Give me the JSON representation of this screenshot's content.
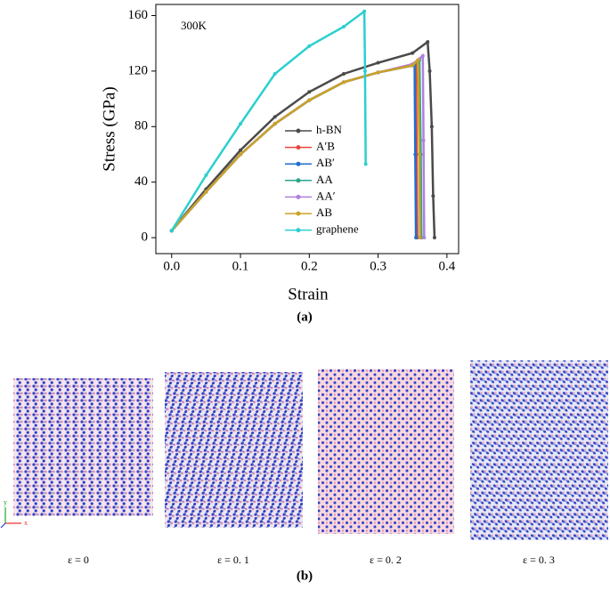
{
  "chart_data": {
    "type": "line",
    "annotation": "300K",
    "xlabel": "Strain",
    "ylabel": "Stress (GPa)",
    "xlim": [
      -0.023,
      0.417
    ],
    "ylim": [
      -11.5,
      168
    ],
    "xticks": [
      {
        "value": 0,
        "label": "0.0"
      },
      0.1,
      0.2,
      0.3,
      0.4
    ],
    "yticks": [
      0,
      40,
      80,
      120,
      160
    ],
    "legend": "center-right",
    "series": [
      {
        "name": "h-BN",
        "color": "#4a4a4a",
        "x": [
          0,
          0.05,
          0.1,
          0.15,
          0.2,
          0.25,
          0.3,
          0.35,
          0.372,
          0.375,
          0.378,
          0.38,
          0.382
        ],
        "values": [
          5,
          35,
          63,
          87,
          105,
          118,
          126,
          133,
          141,
          120,
          80,
          30,
          0
        ]
      },
      {
        "name": "A′B",
        "color": "#e8443a",
        "x": [
          0,
          0.05,
          0.1,
          0.15,
          0.2,
          0.25,
          0.3,
          0.35,
          0.355,
          0.356,
          0.357
        ],
        "values": [
          5,
          33,
          60,
          82,
          99,
          112,
          119,
          124,
          126,
          60,
          0
        ]
      },
      {
        "name": "AB′",
        "color": "#1f6fd1",
        "x": [
          0,
          0.05,
          0.1,
          0.15,
          0.2,
          0.25,
          0.3,
          0.35,
          0.353,
          0.354,
          0.355
        ],
        "values": [
          5,
          33,
          60,
          82,
          99,
          112,
          119,
          124,
          125,
          60,
          0
        ]
      },
      {
        "name": "AA",
        "color": "#2ca58d",
        "x": [
          0,
          0.05,
          0.1,
          0.15,
          0.2,
          0.25,
          0.3,
          0.35,
          0.36,
          0.362,
          0.363
        ],
        "values": [
          5,
          33,
          60,
          82,
          99,
          112,
          119,
          124,
          128,
          60,
          0
        ]
      },
      {
        "name": "AA′",
        "color": "#b07fe0",
        "x": [
          0,
          0.05,
          0.1,
          0.15,
          0.2,
          0.25,
          0.3,
          0.35,
          0.365,
          0.366,
          0.367
        ],
        "values": [
          5,
          33,
          60,
          82,
          99,
          112,
          119,
          125,
          131,
          70,
          0
        ]
      },
      {
        "name": "AB",
        "color": "#c9a227",
        "x": [
          0,
          0.05,
          0.1,
          0.15,
          0.2,
          0.25,
          0.3,
          0.35,
          0.358,
          0.36,
          0.361
        ],
        "values": [
          5,
          33,
          60,
          82,
          99,
          112,
          119,
          124,
          128,
          60,
          0
        ]
      },
      {
        "name": "graphene",
        "color": "#2ccfcf",
        "x": [
          0,
          0.05,
          0.1,
          0.15,
          0.2,
          0.25,
          0.28,
          0.281,
          0.282
        ],
        "values": [
          5,
          45,
          82,
          118,
          138,
          152,
          163,
          120,
          53
        ]
      }
    ]
  },
  "panel_labels": [
    "(a)",
    "(b)"
  ],
  "snapshots": [
    {
      "caption": "ε = 0"
    },
    {
      "caption": "ε = 0. 1"
    },
    {
      "caption": "ε = 0. 2"
    },
    {
      "caption": "ε = 0. 3"
    }
  ],
  "snapshot_axes": [
    "x",
    "y"
  ]
}
